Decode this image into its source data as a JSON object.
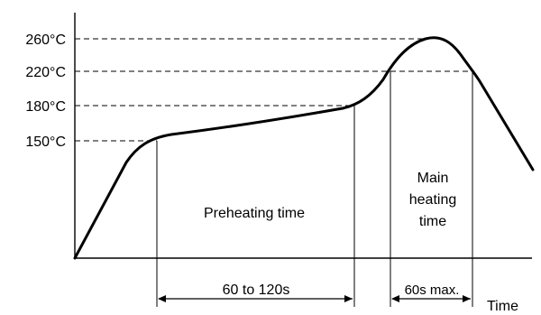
{
  "chart_data": {
    "type": "line",
    "title": "",
    "xlabel": "Time",
    "ylabel": "",
    "y_ticks": [
      "260°C",
      "220°C",
      "180°C",
      "150°C"
    ],
    "temps": [
      260,
      220,
      180,
      150
    ],
    "regions": {
      "preheat_label": "Preheating time",
      "main_label_lines": [
        "Main",
        "heating",
        "time"
      ]
    },
    "durations": {
      "preheat": "60 to 120s",
      "main": "60s max."
    }
  },
  "colors": {
    "curve": "#000000",
    "axis": "#000000",
    "guide": "#000000"
  }
}
